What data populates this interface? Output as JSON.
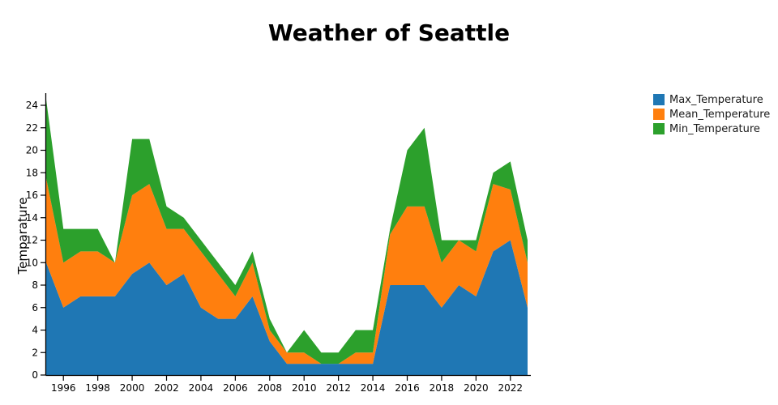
{
  "title": "Weather of Seattle",
  "y_axis_title": "Temparature",
  "legend": {
    "items": [
      {
        "label": "Max_Temperature",
        "color": "#1f77b4"
      },
      {
        "label": "Mean_Temperature",
        "color": "#ff7f0e"
      },
      {
        "label": "Min_Temperature",
        "color": "#2ca02c"
      }
    ]
  },
  "chart_data": {
    "type": "area",
    "stacked": true,
    "title": "Weather of Seattle",
    "xlabel": "",
    "ylabel": "Temparature",
    "x": [
      1995,
      1996,
      1997,
      1998,
      1999,
      2000,
      2001,
      2002,
      2003,
      2004,
      2005,
      2006,
      2007,
      2008,
      2009,
      2010,
      2011,
      2012,
      2013,
      2014,
      2015,
      2016,
      2017,
      2018,
      2019,
      2020,
      2021,
      2022,
      2023
    ],
    "series": [
      {
        "name": "Max_Temperature",
        "color": "#1f77b4",
        "values": [
          10,
          6,
          7,
          7,
          7,
          9,
          10,
          8,
          9,
          6,
          5,
          5,
          7,
          3,
          1,
          1,
          1,
          1,
          1,
          1,
          8,
          8,
          8,
          6,
          8,
          7,
          11,
          12,
          6
        ]
      },
      {
        "name": "Mean_Temperature",
        "color": "#ff7f0e",
        "values": [
          7.5,
          4,
          4,
          4,
          3,
          7,
          7,
          5,
          4,
          5,
          4,
          2,
          3,
          1,
          1,
          1,
          0,
          0,
          1,
          1,
          4.5,
          7,
          7,
          4,
          4,
          4,
          6,
          4.5,
          4
        ]
      },
      {
        "name": "Min_Temperature",
        "color": "#2ca02c",
        "values": [
          7,
          3,
          2,
          2,
          0,
          5,
          4,
          2,
          1,
          1,
          1,
          1,
          1,
          1,
          0,
          2,
          1,
          1,
          2,
          2,
          0.5,
          5,
          7,
          2,
          0,
          1,
          1,
          2.5,
          2
        ]
      }
    ],
    "xticks": [
      1996,
      1998,
      2000,
      2002,
      2004,
      2006,
      2008,
      2010,
      2012,
      2014,
      2016,
      2018,
      2020,
      2022
    ],
    "yticks": [
      0,
      2,
      4,
      6,
      8,
      10,
      12,
      14,
      16,
      18,
      20,
      22,
      24
    ],
    "ylim": [
      0,
      24
    ],
    "grid": false,
    "legend_position": "right"
  }
}
